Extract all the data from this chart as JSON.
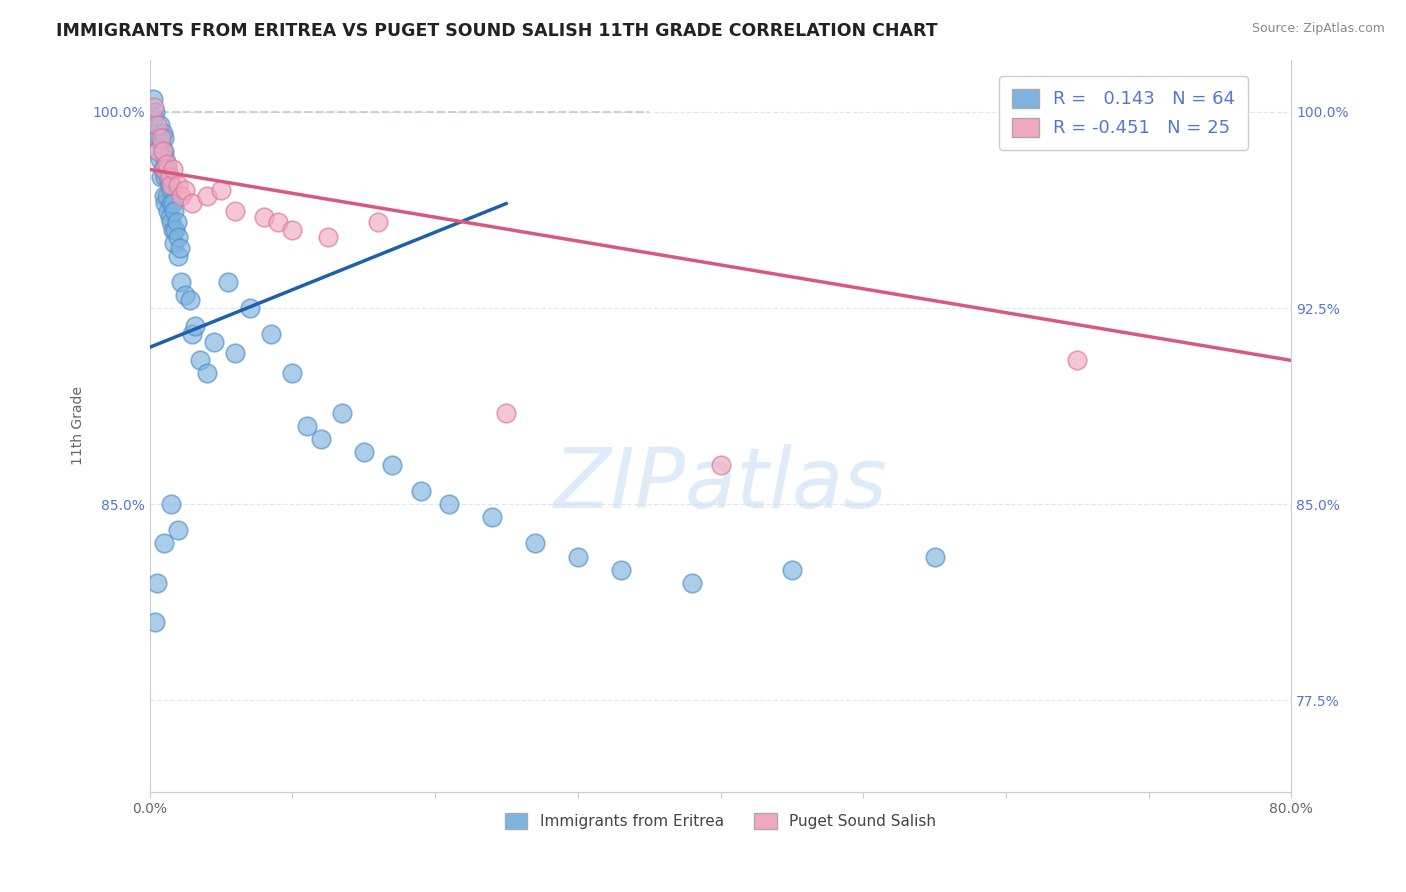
{
  "title": "IMMIGRANTS FROM ERITREA VS PUGET SOUND SALISH 11TH GRADE CORRELATION CHART",
  "source_text": "Source: ZipAtlas.com",
  "ylabel": "11th Grade",
  "xlim": [
    0.0,
    80.0
  ],
  "ylim": [
    74.0,
    102.0
  ],
  "ytick_positions": [
    77.5,
    85.0,
    92.5,
    100.0
  ],
  "ytick_labels_left": [
    "",
    "85.0%",
    "",
    "100.0%"
  ],
  "ytick_labels_right": [
    "77.5%",
    "85.0%",
    "92.5%",
    "100.0%"
  ],
  "xtick_positions": [
    0,
    10,
    20,
    30,
    40,
    50,
    60,
    70,
    80
  ],
  "xtick_labels": [
    "0.0%",
    "",
    "",
    "",
    "",
    "",
    "",
    "",
    "80.0%"
  ],
  "series1_label": "Immigrants from Eritrea",
  "series1_R": 0.143,
  "series1_N": 64,
  "series1_color": "#7eb3e0",
  "series1_edge_color": "#5090c8",
  "series1_line_color": "#2060a8",
  "series2_label": "Puget Sound Salish",
  "series2_R": -0.451,
  "series2_N": 25,
  "series2_color": "#f0a8c0",
  "series2_edge_color": "#d87898",
  "series2_line_color": "#d85880",
  "ref_line_color": "#b8c8d8",
  "watermark_color": "#c8dff5",
  "background_color": "#ffffff",
  "grid_color": "#dde8f0",
  "title_color": "#222222",
  "source_color": "#888888",
  "tick_color": "#5577cc",
  "blue_x": [
    0.2,
    0.3,
    0.4,
    0.5,
    0.5,
    0.6,
    0.7,
    0.7,
    0.8,
    0.8,
    0.9,
    0.9,
    1.0,
    1.0,
    1.0,
    1.0,
    1.1,
    1.1,
    1.1,
    1.2,
    1.2,
    1.3,
    1.3,
    1.4,
    1.4,
    1.5,
    1.5,
    1.5,
    1.6,
    1.6,
    1.7,
    1.7,
    1.8,
    1.9,
    2.0,
    2.0,
    2.1,
    2.2,
    2.5,
    2.8,
    3.0,
    3.2,
    3.5,
    4.0,
    4.5,
    5.5,
    6.0,
    7.0,
    8.5,
    10.0,
    11.0,
    12.0,
    13.5,
    15.0,
    17.0,
    19.0,
    21.0,
    24.0,
    27.0,
    30.0,
    33.0,
    38.0,
    45.0,
    55.0
  ],
  "blue_y": [
    100.5,
    99.8,
    100.0,
    99.2,
    98.5,
    99.0,
    99.5,
    98.2,
    98.8,
    97.5,
    99.2,
    97.8,
    99.0,
    98.5,
    97.8,
    96.8,
    98.2,
    97.5,
    96.5,
    97.8,
    96.8,
    97.5,
    96.2,
    97.2,
    96.0,
    97.0,
    96.5,
    95.8,
    96.5,
    95.5,
    96.2,
    95.0,
    95.5,
    95.8,
    95.2,
    94.5,
    94.8,
    93.5,
    93.0,
    92.8,
    91.5,
    91.8,
    90.5,
    90.0,
    91.2,
    93.5,
    90.8,
    92.5,
    91.5,
    90.0,
    88.0,
    87.5,
    88.5,
    87.0,
    86.5,
    85.5,
    85.0,
    84.5,
    83.5,
    83.0,
    82.5,
    82.0,
    82.5,
    83.0
  ],
  "blue_outlier_x": [
    0.4,
    0.5,
    1.0,
    1.5,
    2.0
  ],
  "blue_outlier_y": [
    80.5,
    82.0,
    83.5,
    85.0,
    84.0
  ],
  "pink_x": [
    0.3,
    0.5,
    0.6,
    0.8,
    0.9,
    1.0,
    1.2,
    1.4,
    1.5,
    1.6,
    2.0,
    2.2,
    2.5,
    3.0,
    4.0,
    5.0,
    6.0,
    8.0,
    9.0,
    10.0,
    12.5,
    16.0,
    25.0,
    40.0,
    65.0
  ],
  "pink_y": [
    100.2,
    99.5,
    98.5,
    99.0,
    98.5,
    97.8,
    98.0,
    97.5,
    97.2,
    97.8,
    97.2,
    96.8,
    97.0,
    96.5,
    96.8,
    97.0,
    96.2,
    96.0,
    95.8,
    95.5,
    95.2,
    95.8,
    88.5,
    86.5,
    90.5
  ],
  "blue_line_x0": 0.0,
  "blue_line_y0": 91.0,
  "blue_line_x1": 25.0,
  "blue_line_y1": 96.5,
  "pink_line_x0": 0.0,
  "pink_line_y0": 97.8,
  "pink_line_x1": 80.0,
  "pink_line_y1": 90.5,
  "ref_line_x0": 0.0,
  "ref_line_y0": 100.0,
  "ref_line_x1": 35.0,
  "ref_line_y1": 100.0
}
